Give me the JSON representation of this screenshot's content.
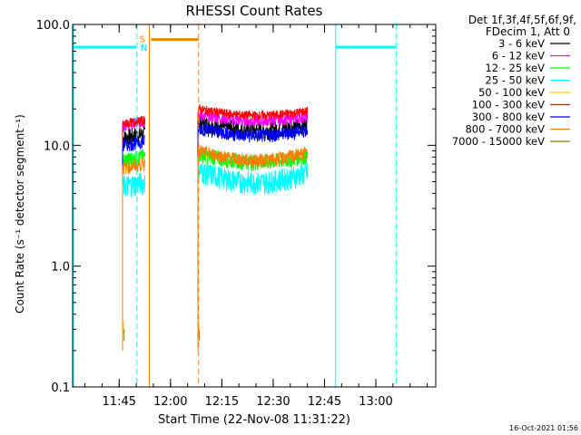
{
  "chart_data": {
    "type": "line",
    "title": "RHESSI Count Rates",
    "xlabel": "Start Time (22-Nov-08 11:31:22)",
    "ylabel": "Count Rate (s⁻¹ detector segment⁻¹)",
    "yscale": "log",
    "ylim": [
      0.1,
      100
    ],
    "xlim_minutes": [
      691.4,
      797.5
    ],
    "x_ticks": [
      {
        "label": "11:45",
        "t": 705
      },
      {
        "label": "12:00",
        "t": 720
      },
      {
        "label": "12:15",
        "t": 735
      },
      {
        "label": "12:30",
        "t": 750
      },
      {
        "label": "12:45",
        "t": 765
      },
      {
        "label": "13:00",
        "t": 780
      }
    ],
    "y_ticks": [
      {
        "label": "0.1",
        "v": 0.1
      },
      {
        "label": "1.0",
        "v": 1
      },
      {
        "label": "10.0",
        "v": 10
      },
      {
        "label": "100.0",
        "v": 100
      }
    ],
    "grid": false,
    "legend_position": "top-right-outside",
    "legend_header": [
      "Det 1f,3f,4f,5f,6f,9f,",
      "FDecim 1, Att 0"
    ],
    "series": [
      {
        "name": "3 - 6 keV",
        "color": "#000000",
        "level1": 11.5,
        "level2": 15.5,
        "noise": 0.08,
        "trend2": -0.1
      },
      {
        "name": "6 - 12 keV",
        "color": "#ff00ff",
        "level1": 14.5,
        "level2": 18.0,
        "noise": 0.05,
        "trend2": -0.08
      },
      {
        "name": "12 - 25 keV",
        "color": "#00ff00",
        "level1": 7.5,
        "level2": 8.5,
        "noise": 0.07,
        "trend2": -0.1
      },
      {
        "name": "25 - 50 keV",
        "color": "#00ffff",
        "level1": 4.6,
        "level2": 6.2,
        "noise": 0.1,
        "trend2": -0.15
      },
      {
        "name": "50 - 100 keV",
        "color": "#ffcc00",
        "level1": 0.35,
        "level2": 0.35,
        "noise": 0.0,
        "trend2": 0
      },
      {
        "name": "100 - 300 keV",
        "color": "#ff0000",
        "level1": 15.0,
        "level2": 20.0,
        "noise": 0.04,
        "trend2": -0.08
      },
      {
        "name": "300 - 800 keV",
        "color": "#0000ff",
        "level1": 10.0,
        "level2": 14.0,
        "noise": 0.06,
        "trend2": -0.1
      },
      {
        "name": "800 - 7000 keV",
        "color": "#ff7f00",
        "level1": 6.5,
        "level2": 9.0,
        "noise": 0.06,
        "trend2": -0.12
      },
      {
        "name": "7000 - 15000 keV",
        "color": "#808000",
        "level1": 0.3,
        "level2": 0.3,
        "noise": 0.0,
        "trend2": 0
      }
    ],
    "data_intervals": [
      {
        "start": 706.0,
        "end": 712.5
      },
      {
        "start": 728.0,
        "end": 760.0
      }
    ],
    "night_intervals": [
      {
        "start": 691.4,
        "end": 710.2,
        "label": "N"
      },
      {
        "start": 768.0,
        "end": 786.0,
        "label": ""
      }
    ],
    "saa_intervals": [
      {
        "start": 713.8,
        "end": 728.2,
        "label": "S"
      }
    ],
    "timestamp": "16-Oct-2021 01:56"
  }
}
